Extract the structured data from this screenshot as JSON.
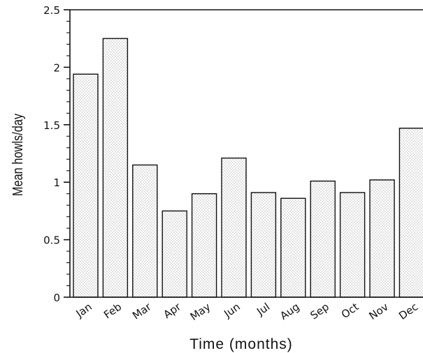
{
  "chart_data": {
    "type": "bar",
    "categories": [
      "Jan",
      "Feb",
      "Mar",
      "Apr",
      "May",
      "Jun",
      "Jul",
      "Aug",
      "Sep",
      "Oct",
      "Nov",
      "Dec"
    ],
    "values": [
      1.94,
      2.25,
      1.15,
      0.75,
      0.9,
      1.21,
      0.91,
      0.86,
      1.01,
      0.91,
      1.02,
      1.47
    ],
    "yticks": [
      "0",
      "0.5",
      "1",
      "1.5",
      "2",
      "2.5"
    ],
    "xlabel": "Time (months)",
    "ylabel": "Mean howls/day",
    "ylim": [
      0,
      2.5
    ],
    "grid": false,
    "legend": "none",
    "colors": {
      "bar_fill": "#ffffff",
      "bar_stipple": "#6e6e6e",
      "bar_edge": "#111111",
      "axis": "#111111"
    }
  }
}
